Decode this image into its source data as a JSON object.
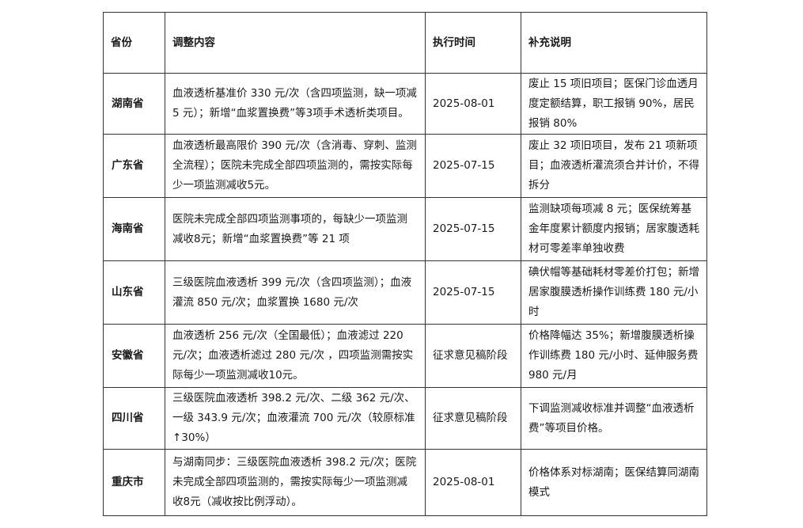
{
  "headers": [
    "省份",
    "调整内容",
    "执行时间",
    "补充说明"
  ],
  "rows": [
    {
      "province": "湖南省",
      "content": "血液透析基准价 330 元/次（含四项监测，缺一项减 5 元）；新增“血浆置换费”等3项手术透析类项目。",
      "date": "2025-08-01",
      "note": "废止 15 项旧项目；医保门诊血透月度定额结算，职工报销 90%，居民报销 80%"
    },
    {
      "province": "广东省",
      "content": "血液透析最高限价 390 元/次（含消毒、穿刺、监测全流程）；医院未完成全部四项监测的，需按实际每少一项监测减收5元。",
      "date": "2025-07-15",
      "note": "废止 32 项旧项目，发布 21 项新项目；血液透析灌流须合并计价，不得拆分"
    },
    {
      "province": "海南省",
      "content": "医院未完成全部四项监测事项的，每缺少一项监测减收8元；新增“血浆置换费”等 21 项",
      "date": "2025-07-15",
      "note": "监测缺项每项减 8 元；医保统筹基金年度累计额度内报销；居家腹透耗材可零差率单独收费"
    },
    {
      "province": "山东省",
      "content": "三级医院血液透析 399 元/次（含四项监测）；血液灌流 850 元/次；血浆置换 1680 元/次",
      "date": "2025-07-15",
      "note": "碘伏帽等基础耗材零差价打包；新增居家腹膜透析操作训练费 180 元/小时"
    },
    {
      "province": "安徽省",
      "content": "血液透析 256 元/次（全国最低）；血液滤过 220 元/次；血液透析滤过 280 元/次 ，四项监测需按实际每少一项监测减收10元。",
      "date": "征求意见稿阶段",
      "note": "价格降幅达 35%；新增腹膜透析操作训练费 180 元/小时、延伸服务费 980 元/月"
    },
    {
      "province": "四川省",
      "content": "三级医院血液透析 398.2 元/次、二级 362 元/次、一级 343.9 元/次；血液灌流 700 元/次（较原标准↑30%）",
      "date": "征求意见稿阶段",
      "note": "下调监测减收标准并调整“血液透析费”等项目价格。"
    },
    {
      "province": "重庆市",
      "content": "与湖南同步：三级医院血液透析 398.2 元/次；医院未完成全部四项监测的，需按实际每少一项监测减收8元（减收按比例浮动）。",
      "date": "2025-08-01",
      "note": "价格体系对标湖南；医保结算同湖南模式"
    }
  ]
}
